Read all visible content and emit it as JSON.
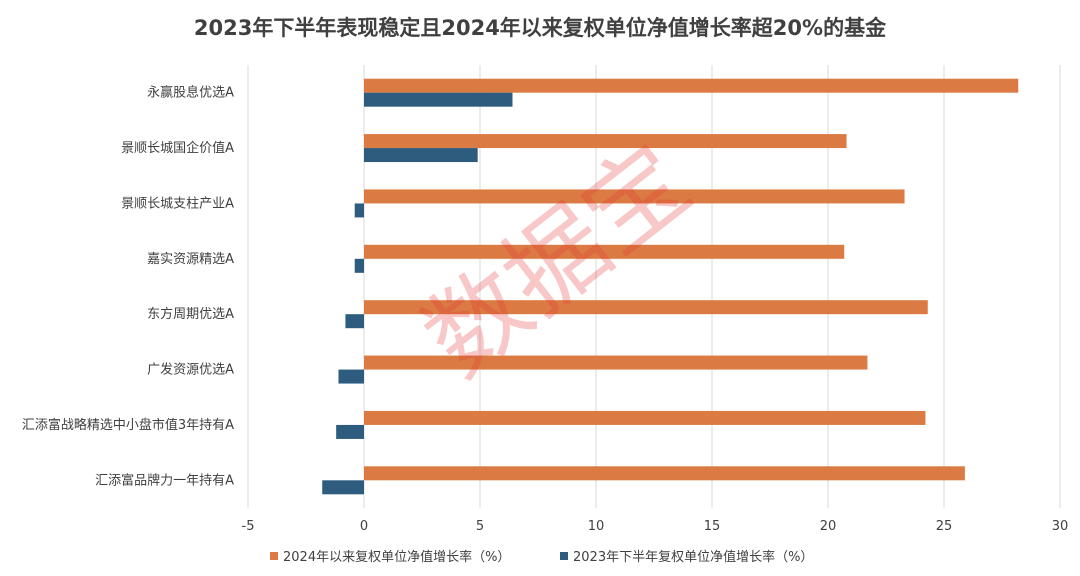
{
  "chart_data": {
    "type": "bar",
    "orientation": "horizontal",
    "title": "2023年下半年表现稳定且2024年以来复权单位净值增长率超20%的基金",
    "categories": [
      "永赢股息优选A",
      "景顺长城国企价值A",
      "景顺长城支柱产业A",
      "嘉实资源精选A",
      "东方周期优选A",
      "广发资源优选A",
      "汇添富战略精选中小盘市值3年持有A",
      "汇添富品牌力一年持有A"
    ],
    "series": [
      {
        "name": "2024年以来复权单位净值增长率（%）",
        "color": "#db7b43",
        "values": [
          28.2,
          20.8,
          23.3,
          20.7,
          24.3,
          21.7,
          24.2,
          25.9
        ]
      },
      {
        "name": "2023年下半年复权单位净值增长率（%）",
        "color": "#2e5c7f",
        "values": [
          6.4,
          4.9,
          -0.4,
          -0.4,
          -0.8,
          -1.1,
          -1.2,
          -1.8
        ]
      }
    ],
    "xlim": [
      -5,
      30
    ],
    "xticks": [
      "-5",
      "0",
      "5",
      "10",
      "15",
      "20",
      "25",
      "30"
    ],
    "grid": "vertical",
    "legend": "bottom"
  },
  "watermark": "数据宝"
}
